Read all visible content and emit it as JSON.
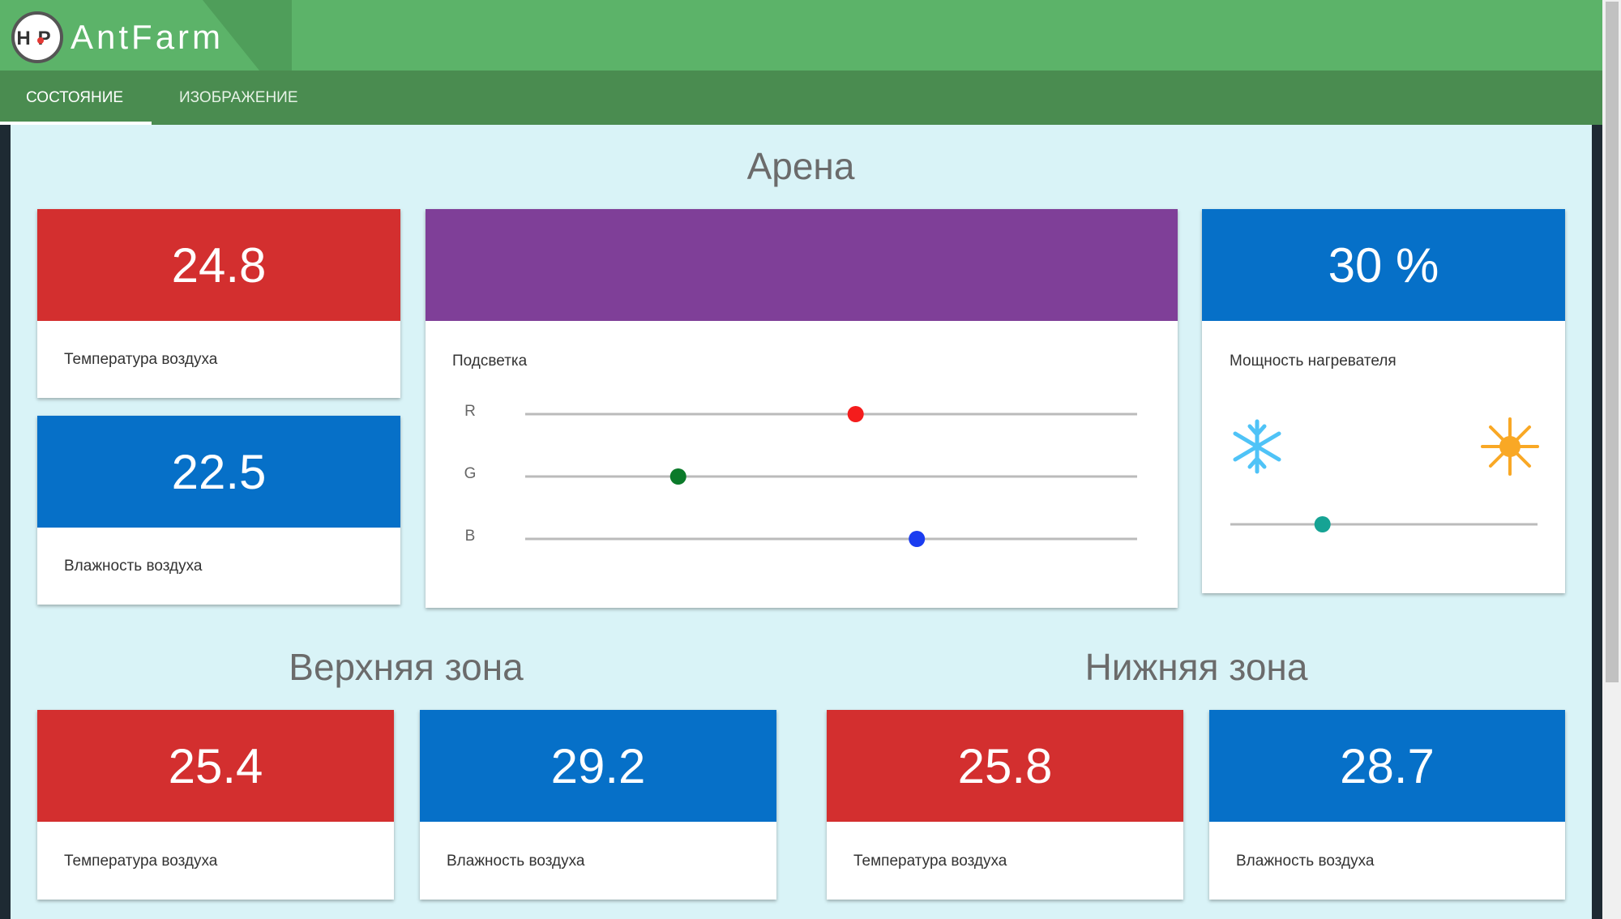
{
  "header": {
    "logo": "HP",
    "title": "AntFarm"
  },
  "tabs": [
    {
      "label": "СОСТОЯНИЕ",
      "active": true
    },
    {
      "label": "ИЗОБРАЖЕНИЕ",
      "active": false
    }
  ],
  "arena": {
    "title": "Арена",
    "temperature": {
      "value": 24.8,
      "label": "Температура воздуха"
    },
    "humidity": {
      "value": 22.5,
      "label": "Влажность воздуха"
    },
    "lighting": {
      "label": "Подсветка",
      "color": "#7f3f98",
      "channels": [
        {
          "name": "R",
          "value": 54,
          "color": "#f41c1c"
        },
        {
          "name": "G",
          "value": 25,
          "color": "#0b7a2a"
        },
        {
          "name": "B",
          "value": 64,
          "color": "#1a3cf0"
        }
      ]
    },
    "heater": {
      "value": 30,
      "value_label": "30 %",
      "label": "Мощность нагревателя",
      "color": "#16a394"
    }
  },
  "upper_zone": {
    "title": "Верхняя зона",
    "temperature": {
      "value": 25.4,
      "label": "Температура воздуха"
    },
    "humidity": {
      "value": 29.2,
      "label": "Влажность воздуха"
    }
  },
  "lower_zone": {
    "title": "Нижняя зона",
    "temperature": {
      "value": 25.8,
      "label": "Температура воздуха"
    },
    "humidity": {
      "value": 28.7,
      "label": "Влажность воздуха"
    }
  }
}
